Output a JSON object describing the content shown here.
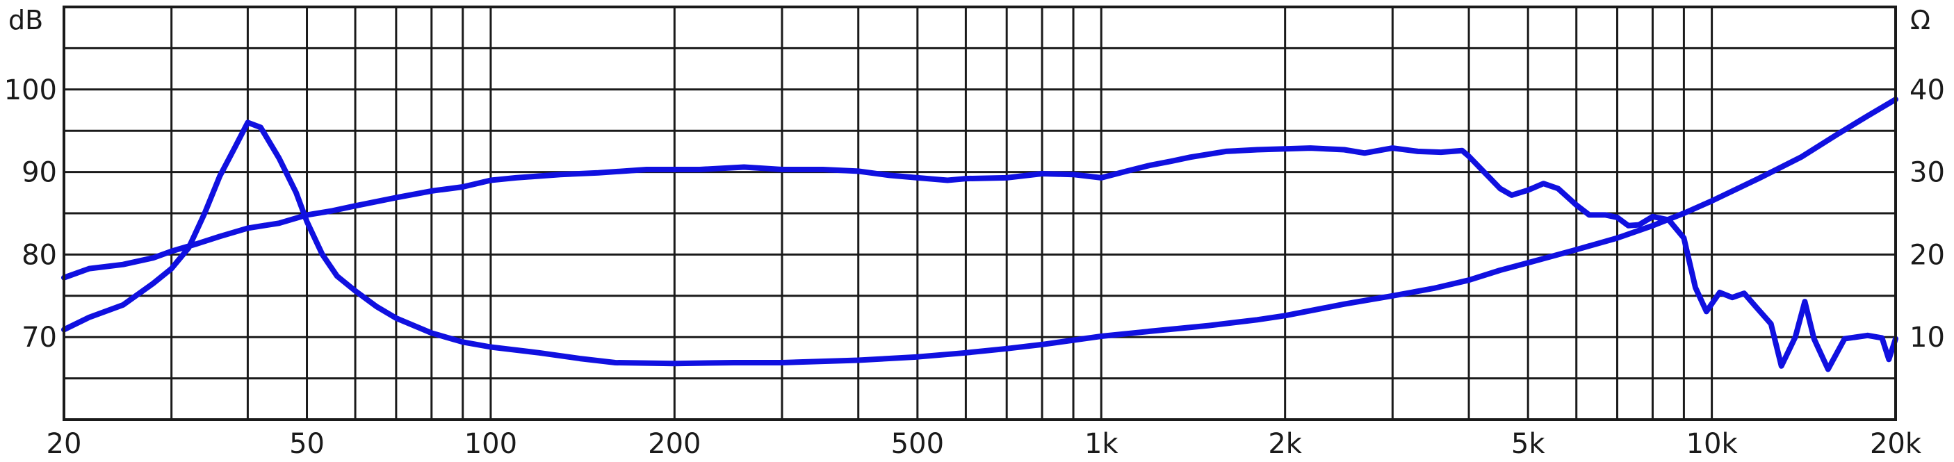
{
  "chart_data": {
    "type": "line",
    "x_scale": "log",
    "xlim": [
      20,
      20000
    ],
    "grid": true,
    "x_ticks": [
      {
        "value": 20,
        "label": "20"
      },
      {
        "value": 50,
        "label": "50"
      },
      {
        "value": 100,
        "label": "100"
      },
      {
        "value": 200,
        "label": "200"
      },
      {
        "value": 500,
        "label": "500"
      },
      {
        "value": 1000,
        "label": "1k"
      },
      {
        "value": 2000,
        "label": "2k"
      },
      {
        "value": 5000,
        "label": "5k"
      },
      {
        "value": 10000,
        "label": "10k"
      },
      {
        "value": 20000,
        "label": "20k"
      }
    ],
    "x_grid": [
      20,
      30,
      40,
      50,
      60,
      70,
      80,
      90,
      100,
      200,
      300,
      400,
      500,
      600,
      700,
      800,
      900,
      1000,
      2000,
      3000,
      4000,
      5000,
      6000,
      7000,
      8000,
      9000,
      10000,
      20000
    ],
    "left_axis": {
      "unit": "dB",
      "ylim": [
        60,
        110
      ],
      "tick_values": [
        70,
        80,
        90,
        100
      ],
      "tick_labels": [
        "70",
        "80",
        "90",
        "100"
      ],
      "grid_step": 5
    },
    "right_axis": {
      "unit": "Ω",
      "ylim": [
        0,
        50
      ],
      "tick_values": [
        10,
        20,
        30,
        40
      ],
      "tick_labels": [
        "10",
        "20",
        "30",
        "40"
      ]
    },
    "colors": {
      "curve": "#1010e0",
      "grid": "#1a1a1a"
    },
    "series": [
      {
        "axis": "left",
        "points": [
          [
            20,
            77.2
          ],
          [
            22,
            78.3
          ],
          [
            25,
            78.8
          ],
          [
            28,
            79.6
          ],
          [
            30,
            80.4
          ],
          [
            33,
            81.3
          ],
          [
            36,
            82.2
          ],
          [
            40,
            83.2
          ],
          [
            45,
            83.8
          ],
          [
            50,
            84.8
          ],
          [
            55,
            85.3
          ],
          [
            60,
            85.9
          ],
          [
            70,
            86.9
          ],
          [
            80,
            87.7
          ],
          [
            90,
            88.2
          ],
          [
            100,
            89.0
          ],
          [
            110,
            89.3
          ],
          [
            130,
            89.7
          ],
          [
            150,
            89.9
          ],
          [
            180,
            90.3
          ],
          [
            220,
            90.3
          ],
          [
            260,
            90.6
          ],
          [
            300,
            90.3
          ],
          [
            350,
            90.3
          ],
          [
            400,
            90.1
          ],
          [
            450,
            89.6
          ],
          [
            500,
            89.3
          ],
          [
            560,
            89.0
          ],
          [
            600,
            89.2
          ],
          [
            700,
            89.3
          ],
          [
            800,
            89.8
          ],
          [
            900,
            89.7
          ],
          [
            1000,
            89.3
          ],
          [
            1100,
            90.1
          ],
          [
            1200,
            90.8
          ],
          [
            1300,
            91.3
          ],
          [
            1400,
            91.8
          ],
          [
            1600,
            92.5
          ],
          [
            1800,
            92.7
          ],
          [
            2000,
            92.8
          ],
          [
            2200,
            92.9
          ],
          [
            2500,
            92.7
          ],
          [
            2700,
            92.3
          ],
          [
            3000,
            92.9
          ],
          [
            3300,
            92.5
          ],
          [
            3600,
            92.4
          ],
          [
            3900,
            92.6
          ],
          [
            4000,
            91.9
          ],
          [
            4300,
            89.5
          ],
          [
            4500,
            88.0
          ],
          [
            4700,
            87.2
          ],
          [
            5000,
            87.8
          ],
          [
            5300,
            88.6
          ],
          [
            5600,
            88.0
          ],
          [
            6000,
            86.0
          ],
          [
            6300,
            84.8
          ],
          [
            6700,
            84.8
          ],
          [
            7000,
            84.5
          ],
          [
            7300,
            83.5
          ],
          [
            7600,
            83.6
          ],
          [
            8000,
            84.6
          ],
          [
            8500,
            84.2
          ],
          [
            9000,
            82.0
          ],
          [
            9400,
            76.0
          ],
          [
            9800,
            73.1
          ],
          [
            10300,
            75.4
          ],
          [
            10800,
            74.8
          ],
          [
            11300,
            75.3
          ],
          [
            11800,
            73.7
          ],
          [
            12500,
            71.6
          ],
          [
            13000,
            66.5
          ],
          [
            13700,
            70.0
          ],
          [
            14200,
            74.3
          ],
          [
            14700,
            69.8
          ],
          [
            15500,
            66.1
          ],
          [
            16500,
            69.8
          ],
          [
            18000,
            70.2
          ],
          [
            19000,
            69.9
          ],
          [
            19500,
            67.3
          ],
          [
            20000,
            69.8
          ]
        ]
      },
      {
        "axis": "right",
        "points": [
          [
            20,
            10.9
          ],
          [
            22,
            12.4
          ],
          [
            25,
            13.9
          ],
          [
            28,
            16.5
          ],
          [
            30,
            18.3
          ],
          [
            32,
            20.8
          ],
          [
            34,
            25.0
          ],
          [
            36,
            29.5
          ],
          [
            38,
            32.8
          ],
          [
            40,
            36.0
          ],
          [
            42,
            35.4
          ],
          [
            45,
            31.7
          ],
          [
            48,
            27.5
          ],
          [
            50,
            24.0
          ],
          [
            53,
            20.0
          ],
          [
            56,
            17.4
          ],
          [
            60,
            15.6
          ],
          [
            65,
            13.7
          ],
          [
            70,
            12.3
          ],
          [
            80,
            10.5
          ],
          [
            90,
            9.4
          ],
          [
            100,
            8.8
          ],
          [
            120,
            8.1
          ],
          [
            140,
            7.4
          ],
          [
            160,
            6.9
          ],
          [
            200,
            6.8
          ],
          [
            250,
            6.9
          ],
          [
            300,
            6.9
          ],
          [
            400,
            7.2
          ],
          [
            500,
            7.6
          ],
          [
            600,
            8.1
          ],
          [
            700,
            8.6
          ],
          [
            800,
            9.1
          ],
          [
            1000,
            10.1
          ],
          [
            1200,
            10.7
          ],
          [
            1500,
            11.4
          ],
          [
            1800,
            12.1
          ],
          [
            2000,
            12.6
          ],
          [
            2500,
            14.0
          ],
          [
            3000,
            15.0
          ],
          [
            3500,
            15.9
          ],
          [
            4000,
            16.9
          ],
          [
            4500,
            18.1
          ],
          [
            5000,
            19.0
          ],
          [
            6000,
            20.6
          ],
          [
            7000,
            22.0
          ],
          [
            8000,
            23.5
          ],
          [
            9000,
            25.0
          ],
          [
            10000,
            26.5
          ],
          [
            12000,
            29.3
          ],
          [
            14000,
            31.8
          ],
          [
            16000,
            34.5
          ],
          [
            18000,
            36.8
          ],
          [
            20000,
            38.8
          ]
        ]
      }
    ]
  }
}
